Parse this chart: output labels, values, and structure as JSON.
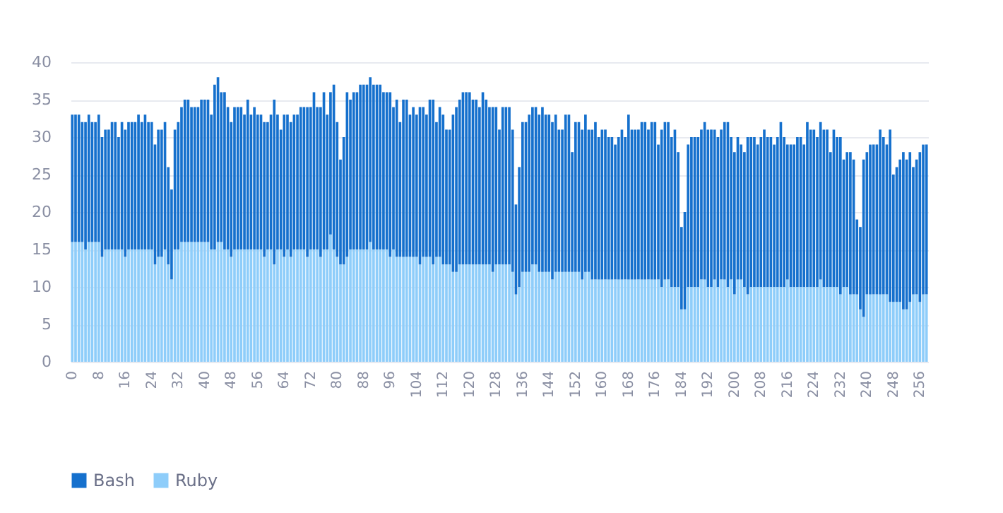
{
  "chart_data": {
    "type": "bar",
    "stacked": true,
    "grid": "y",
    "legend": "bottom left",
    "ylim": [
      0,
      40
    ],
    "yticks": [
      0,
      5,
      10,
      15,
      20,
      25,
      30,
      35,
      40
    ],
    "categories": [
      "0",
      null,
      null,
      null,
      null,
      null,
      null,
      null,
      "8",
      null,
      null,
      null,
      null,
      null,
      null,
      null,
      "16",
      null,
      null,
      null,
      null,
      null,
      null,
      null,
      "24",
      null,
      null,
      null,
      null,
      null,
      null,
      null,
      "32",
      null,
      null,
      null,
      null,
      null,
      null,
      null,
      "40",
      null,
      null,
      null,
      null,
      null,
      null,
      null,
      "48",
      null,
      null,
      null,
      null,
      null,
      null,
      null,
      "56",
      null,
      null,
      null,
      null,
      null,
      null,
      null,
      "64",
      null,
      null,
      null,
      null,
      null,
      null,
      null,
      "72",
      null,
      null,
      null,
      null,
      null,
      null,
      null,
      "80",
      null,
      null,
      null,
      null,
      null,
      null,
      null,
      "88",
      null,
      null,
      null,
      null,
      null,
      null,
      null,
      "96",
      null,
      null,
      null,
      null,
      null,
      null,
      null,
      "104",
      null,
      null,
      null,
      null,
      null,
      null,
      null,
      "112",
      null,
      null,
      null,
      null,
      null,
      null,
      null,
      "120",
      null,
      null,
      null,
      null,
      null,
      null,
      null,
      "128",
      null,
      null,
      null,
      null,
      null,
      null,
      null,
      "136",
      null,
      null,
      null,
      null,
      null,
      null,
      null,
      "144",
      null,
      null,
      null,
      null,
      null,
      null,
      null,
      "152",
      null,
      null,
      null,
      null,
      null,
      null,
      null,
      "160",
      null,
      null,
      null,
      null,
      null,
      null,
      null,
      "168",
      null,
      null,
      null,
      null,
      null,
      null,
      null,
      "176",
      null,
      null,
      null,
      null,
      null,
      null,
      null,
      "184",
      null,
      null,
      null,
      null,
      null,
      null,
      null,
      "192",
      null,
      null,
      null,
      null,
      null,
      null,
      null,
      "200",
      null,
      null,
      null,
      null,
      null,
      null,
      null,
      "208",
      null,
      null,
      null,
      null,
      null,
      null,
      null,
      "216",
      null,
      null,
      null,
      null,
      null,
      null,
      null,
      "224",
      null,
      null,
      null,
      null,
      null,
      null,
      null,
      "232",
      null,
      null,
      null,
      null,
      null,
      null,
      null,
      "240",
      null,
      null,
      null,
      null,
      null,
      null,
      null,
      "248",
      null,
      null,
      null,
      null,
      null,
      null,
      null,
      "256",
      null,
      null
    ],
    "series": [
      {
        "name": "Ruby",
        "color": "#8ecdfa",
        "values": [
          16,
          16,
          16,
          16,
          15,
          16,
          16,
          16,
          16,
          14,
          15,
          15,
          15,
          15,
          15,
          15,
          14,
          15,
          15,
          15,
          15,
          15,
          15,
          15,
          15,
          13,
          14,
          14,
          15,
          13,
          11,
          15,
          15,
          16,
          16,
          16,
          16,
          16,
          16,
          16,
          16,
          16,
          15,
          15,
          16,
          16,
          15,
          15,
          14,
          15,
          15,
          15,
          15,
          15,
          15,
          15,
          15,
          15,
          14,
          15,
          15,
          13,
          15,
          15,
          14,
          15,
          14,
          15,
          15,
          15,
          15,
          14,
          15,
          15,
          15,
          14,
          15,
          15,
          17,
          15,
          14,
          13,
          13,
          14,
          15,
          15,
          15,
          15,
          15,
          15,
          16,
          15,
          15,
          15,
          15,
          15,
          14,
          15,
          14,
          14,
          14,
          14,
          14,
          14,
          14,
          13,
          14,
          14,
          14,
          13,
          14,
          14,
          13,
          13,
          13,
          12,
          12,
          13,
          13,
          13,
          13,
          13,
          13,
          13,
          13,
          13,
          13,
          12,
          13,
          13,
          13,
          13,
          13,
          12,
          9,
          10,
          12,
          12,
          12,
          13,
          13,
          12,
          12,
          12,
          12,
          11,
          12,
          12,
          12,
          12,
          12,
          12,
          12,
          12,
          11,
          12,
          12,
          11,
          11,
          11,
          11,
          11,
          11,
          11,
          11,
          11,
          11,
          11,
          11,
          11,
          11,
          11,
          11,
          11,
          11,
          11,
          11,
          11,
          10,
          11,
          11,
          10,
          10,
          10,
          7,
          7,
          10,
          10,
          10,
          10,
          11,
          11,
          10,
          10,
          11,
          10,
          11,
          11,
          10,
          11,
          9,
          11,
          11,
          10,
          9,
          10,
          10,
          10,
          10,
          10,
          10,
          10,
          10,
          10,
          10,
          10,
          11,
          10,
          10,
          10,
          10,
          10,
          10,
          10,
          10,
          10,
          11,
          10,
          10,
          10,
          10,
          10,
          9,
          10,
          10,
          9,
          9,
          9,
          7,
          6,
          9,
          9,
          9,
          9,
          9,
          9,
          9,
          8,
          8,
          8,
          8,
          7,
          7,
          8,
          9,
          9,
          8,
          9,
          9
        ]
      },
      {
        "name": "Bash",
        "color": "#1570cd",
        "values": [
          17,
          17,
          17,
          16,
          17,
          17,
          16,
          16,
          17,
          16,
          16,
          16,
          17,
          17,
          15,
          17,
          17,
          17,
          17,
          17,
          18,
          17,
          18,
          17,
          17,
          16,
          17,
          17,
          17,
          13,
          12,
          16,
          17,
          18,
          19,
          19,
          18,
          18,
          18,
          19,
          19,
          19,
          18,
          22,
          22,
          20,
          21,
          19,
          18,
          19,
          19,
          19,
          18,
          20,
          18,
          19,
          18,
          18,
          18,
          17,
          18,
          22,
          18,
          16,
          19,
          18,
          18,
          18,
          18,
          19,
          19,
          20,
          19,
          21,
          19,
          20,
          21,
          18,
          19,
          22,
          18,
          14,
          17,
          22,
          20,
          21,
          21,
          22,
          22,
          22,
          22,
          22,
          22,
          22,
          21,
          21,
          22,
          19,
          21,
          18,
          21,
          21,
          19,
          20,
          19,
          21,
          20,
          19,
          21,
          22,
          18,
          20,
          20,
          18,
          18,
          21,
          22,
          22,
          23,
          23,
          23,
          22,
          22,
          21,
          23,
          22,
          21,
          22,
          21,
          18,
          21,
          21,
          21,
          19,
          12,
          16,
          20,
          20,
          21,
          21,
          21,
          21,
          22,
          21,
          21,
          21,
          21,
          19,
          19,
          21,
          21,
          16,
          20,
          20,
          20,
          21,
          19,
          20,
          21,
          19,
          20,
          20,
          19,
          19,
          18,
          19,
          20,
          19,
          22,
          20,
          20,
          20,
          21,
          21,
          20,
          21,
          21,
          18,
          21,
          21,
          21,
          20,
          21,
          18,
          11,
          13,
          19,
          20,
          20,
          20,
          20,
          21,
          21,
          21,
          20,
          20,
          20,
          21,
          22,
          19,
          19,
          19,
          18,
          18,
          21,
          20,
          20,
          19,
          20,
          21,
          20,
          20,
          19,
          20,
          22,
          20,
          18,
          19,
          19,
          20,
          20,
          19,
          22,
          21,
          21,
          20,
          21,
          21,
          21,
          18,
          21,
          20,
          21,
          17,
          18,
          19,
          18,
          10,
          11,
          21,
          19,
          20,
          20,
          20,
          22,
          21,
          20,
          23,
          17,
          18,
          19,
          21,
          20,
          20,
          17,
          18,
          20,
          20,
          20
        ]
      }
    ]
  }
}
